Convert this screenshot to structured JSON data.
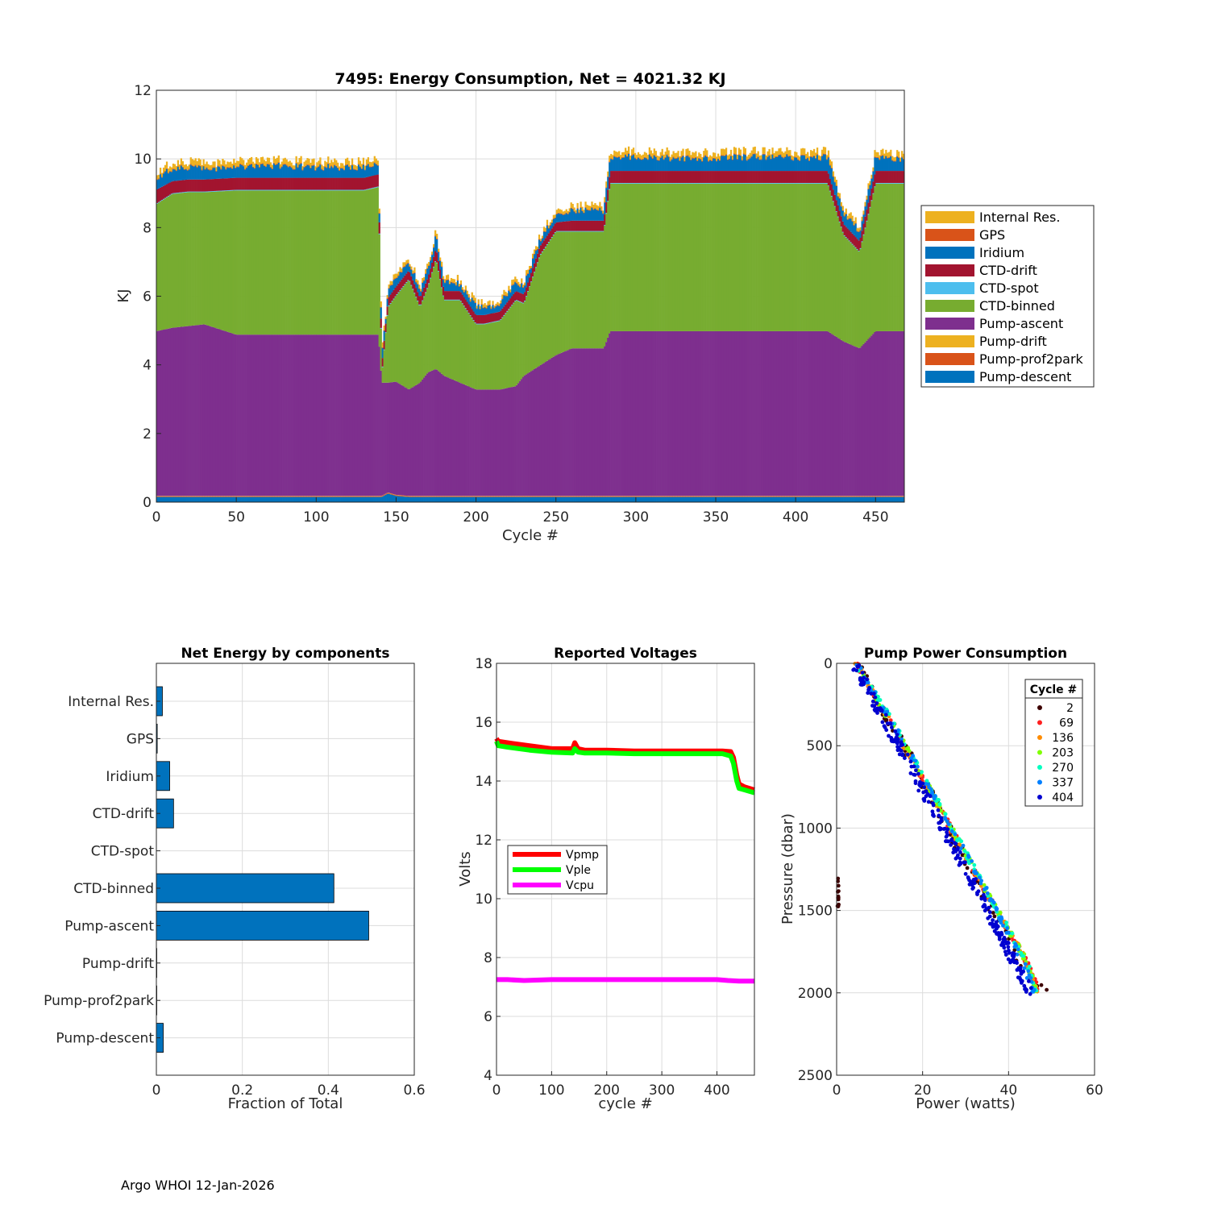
{
  "footer": "Argo WHOI 12-Jan-2026",
  "colors": {
    "internal_res": "#EDB120",
    "gps": "#D95319",
    "iridium": "#0072BD",
    "ctd_drift": "#A2142F",
    "ctd_spot": "#4DBEEE",
    "ctd_binned": "#77AC30",
    "pump_ascent": "#7E2F8E",
    "pump_drift": "#EDB120",
    "pump_prof2park": "#D95319",
    "pump_descent": "#0072BD",
    "grid": "#dcdcdc",
    "bar_blue": "#0072BD",
    "vpmp": "#FF0000",
    "vple": "#00FF00",
    "vcpu": "#FF00FF"
  },
  "chart_data": [
    {
      "type": "bar",
      "stacked": true,
      "title": "7495: Energy Consumption,  Net = 4021.32 KJ",
      "xlabel": "Cycle #",
      "ylabel": "KJ",
      "xlim": [
        0,
        468
      ],
      "ylim": [
        0,
        12
      ],
      "xticks": [
        "0",
        "50",
        "100",
        "150",
        "200",
        "250",
        "300",
        "350",
        "400",
        "450"
      ],
      "yticks": [
        "0",
        "2",
        "4",
        "6",
        "8",
        "10",
        "12"
      ],
      "legend": [
        "Internal Res.",
        "GPS",
        "Iridium",
        "CTD-drift",
        "CTD-spot",
        "CTD-binned",
        "Pump-ascent",
        "Pump-drift",
        "Pump-prof2park",
        "Pump-descent"
      ],
      "legend_location": "outside-right",
      "profile_cycles": [
        0,
        10,
        20,
        30,
        50,
        80,
        97,
        110,
        130,
        139,
        141,
        145,
        150,
        158,
        165,
        170,
        175,
        180,
        190,
        200,
        205,
        215,
        225,
        230,
        240,
        250,
        260,
        280,
        284,
        300,
        330,
        350,
        360,
        400,
        410,
        420,
        430,
        440,
        450,
        468
      ],
      "series": [
        {
          "name": "Pump-descent",
          "values": [
            0.15,
            0.15,
            0.15,
            0.15,
            0.15,
            0.15,
            0.15,
            0.15,
            0.15,
            0.15,
            0.15,
            0.25,
            0.18,
            0.15,
            0.15,
            0.15,
            0.15,
            0.15,
            0.15,
            0.15,
            0.15,
            0.15,
            0.15,
            0.15,
            0.15,
            0.15,
            0.15,
            0.15,
            0.15,
            0.15,
            0.15,
            0.15,
            0.15,
            0.15,
            0.15,
            0.15,
            0.15,
            0.15,
            0.15,
            0.15
          ]
        },
        {
          "name": "Pump-prof2park",
          "values": [
            0.02,
            0.02,
            0.02,
            0.02,
            0.02,
            0.02,
            0.02,
            0.02,
            0.02,
            0.02,
            0.02,
            0.02,
            0.02,
            0.02,
            0.02,
            0.02,
            0.02,
            0.02,
            0.02,
            0.02,
            0.02,
            0.02,
            0.02,
            0.02,
            0.02,
            0.02,
            0.02,
            0.02,
            0.02,
            0.02,
            0.02,
            0.02,
            0.02,
            0.02,
            0.02,
            0.02,
            0.02,
            0.02,
            0.02,
            0.02
          ]
        },
        {
          "name": "Pump-drift",
          "values": [
            0.01,
            0.01,
            0.01,
            0.01,
            0.01,
            0.01,
            0.01,
            0.01,
            0.01,
            0.01,
            0.01,
            0.01,
            0.01,
            0.01,
            0.01,
            0.01,
            0.01,
            0.01,
            0.01,
            0.01,
            0.01,
            0.01,
            0.01,
            0.01,
            0.01,
            0.01,
            0.01,
            0.01,
            0.01,
            0.01,
            0.01,
            0.01,
            0.01,
            0.01,
            0.01,
            0.01,
            0.01,
            0.01,
            0.01,
            0.01
          ]
        },
        {
          "name": "Pump-ascent",
          "values": [
            4.8,
            4.9,
            4.95,
            5.0,
            4.7,
            4.7,
            4.7,
            4.7,
            4.7,
            4.7,
            3.3,
            3.2,
            3.3,
            3.1,
            3.3,
            3.6,
            3.7,
            3.5,
            3.3,
            3.1,
            3.1,
            3.1,
            3.2,
            3.5,
            3.8,
            4.1,
            4.3,
            4.3,
            4.8,
            4.8,
            4.8,
            4.8,
            4.8,
            4.8,
            4.8,
            4.8,
            4.5,
            4.3,
            4.8,
            4.8
          ]
        },
        {
          "name": "CTD-binned",
          "values": [
            3.7,
            3.9,
            3.9,
            3.85,
            4.2,
            4.2,
            4.2,
            4.2,
            4.2,
            4.3,
            0.2,
            2.2,
            2.5,
            3.2,
            2.2,
            2.5,
            3.2,
            2.2,
            2.4,
            1.9,
            1.9,
            2.0,
            2.5,
            2.1,
            3.2,
            3.6,
            3.4,
            3.4,
            4.3,
            4.3,
            4.3,
            4.3,
            4.3,
            4.3,
            4.3,
            4.3,
            3.1,
            2.8,
            4.3,
            4.3
          ]
        },
        {
          "name": "CTD-spot",
          "values": [
            0.02,
            0.02,
            0.02,
            0.02,
            0.02,
            0.02,
            0.02,
            0.02,
            0.02,
            0.02,
            0.02,
            0.02,
            0.02,
            0.02,
            0.02,
            0.02,
            0.02,
            0.02,
            0.02,
            0.02,
            0.02,
            0.02,
            0.02,
            0.02,
            0.02,
            0.02,
            0.02,
            0.02,
            0.02,
            0.02,
            0.02,
            0.02,
            0.02,
            0.02,
            0.02,
            0.02,
            0.02,
            0.02,
            0.02,
            0.02
          ]
        },
        {
          "name": "CTD-drift",
          "values": [
            0.4,
            0.35,
            0.35,
            0.35,
            0.35,
            0.35,
            0.35,
            0.35,
            0.35,
            0.35,
            0.25,
            0.25,
            0.25,
            0.25,
            0.25,
            0.25,
            0.3,
            0.25,
            0.25,
            0.25,
            0.25,
            0.25,
            0.25,
            0.25,
            0.25,
            0.25,
            0.3,
            0.3,
            0.35,
            0.35,
            0.35,
            0.35,
            0.35,
            0.35,
            0.35,
            0.35,
            0.3,
            0.3,
            0.35,
            0.35
          ]
        },
        {
          "name": "Iridium",
          "values": [
            0.35,
            0.35,
            0.35,
            0.3,
            0.3,
            0.35,
            0.3,
            0.3,
            0.3,
            0.3,
            0.2,
            0.25,
            0.2,
            0.25,
            0.2,
            0.25,
            0.35,
            0.25,
            0.2,
            0.25,
            0.2,
            0.25,
            0.2,
            0.25,
            0.2,
            0.2,
            0.3,
            0.3,
            0.4,
            0.4,
            0.35,
            0.35,
            0.4,
            0.4,
            0.35,
            0.4,
            0.3,
            0.3,
            0.4,
            0.35
          ]
        },
        {
          "name": "GPS",
          "values": [
            0.02,
            0.02,
            0.02,
            0.02,
            0.02,
            0.02,
            0.02,
            0.02,
            0.02,
            0.02,
            0.02,
            0.02,
            0.02,
            0.02,
            0.02,
            0.02,
            0.02,
            0.02,
            0.02,
            0.02,
            0.02,
            0.02,
            0.02,
            0.02,
            0.02,
            0.02,
            0.02,
            0.02,
            0.02,
            0.02,
            0.02,
            0.02,
            0.02,
            0.02,
            0.02,
            0.02,
            0.02,
            0.02,
            0.02,
            0.02
          ]
        },
        {
          "name": "Internal Res.",
          "values": [
            0.15,
            0.15,
            0.15,
            0.15,
            0.15,
            0.15,
            0.15,
            0.15,
            0.15,
            0.15,
            0.1,
            0.1,
            0.1,
            0.1,
            0.1,
            0.1,
            0.12,
            0.1,
            0.1,
            0.1,
            0.1,
            0.1,
            0.1,
            0.1,
            0.1,
            0.1,
            0.12,
            0.12,
            0.15,
            0.15,
            0.15,
            0.15,
            0.15,
            0.15,
            0.15,
            0.15,
            0.12,
            0.12,
            0.15,
            0.15
          ]
        }
      ]
    },
    {
      "type": "bar",
      "orientation": "horizontal",
      "title": "Net Energy by components",
      "xlabel": "Fraction of Total",
      "xlim": [
        0,
        0.6
      ],
      "xticks": [
        "0",
        "0.2",
        "0.4",
        "0.6"
      ],
      "categories": [
        "Internal Res.",
        "GPS",
        "Iridium",
        "CTD-drift",
        "CTD-spot",
        "CTD-binned",
        "Pump-ascent",
        "Pump-drift",
        "Pump-prof2park",
        "Pump-descent"
      ],
      "values": [
        0.014,
        0.002,
        0.031,
        0.04,
        0.0005,
        0.413,
        0.494,
        0.001,
        0.001,
        0.016
      ]
    },
    {
      "type": "line",
      "title": "Reported Voltages",
      "xlabel": "cycle #",
      "ylabel": "Volts",
      "xlim": [
        0,
        468
      ],
      "ylim": [
        4,
        18
      ],
      "xticks": [
        "0",
        "100",
        "200",
        "300",
        "400"
      ],
      "yticks": [
        "4",
        "6",
        "8",
        "10",
        "12",
        "14",
        "16",
        "18"
      ],
      "legend_location": "middle-left",
      "series": [
        {
          "name": "Vpmp",
          "x": [
            0,
            3,
            20,
            60,
            100,
            138,
            142,
            148,
            160,
            200,
            250,
            300,
            350,
            410,
            425,
            430,
            436,
            440,
            450,
            468
          ],
          "y": [
            15.45,
            15.35,
            15.3,
            15.2,
            15.1,
            15.1,
            15.3,
            15.1,
            15.05,
            15.05,
            15.02,
            15.02,
            15.02,
            15.02,
            15.0,
            14.8,
            14.2,
            13.9,
            13.8,
            13.7
          ]
        },
        {
          "name": "Vple",
          "x": [
            0,
            3,
            20,
            60,
            100,
            138,
            142,
            148,
            160,
            200,
            250,
            300,
            350,
            410,
            425,
            430,
            436,
            440,
            450,
            468
          ],
          "y": [
            15.35,
            15.2,
            15.15,
            15.05,
            14.98,
            14.95,
            15.1,
            14.98,
            14.95,
            14.95,
            14.93,
            14.93,
            14.93,
            14.93,
            14.85,
            14.6,
            14.0,
            13.75,
            13.7,
            13.6
          ]
        },
        {
          "name": "Vcpu",
          "x": [
            0,
            20,
            50,
            100,
            200,
            300,
            400,
            420,
            440,
            468
          ],
          "y": [
            7.25,
            7.25,
            7.22,
            7.25,
            7.25,
            7.25,
            7.25,
            7.22,
            7.2,
            7.2
          ]
        }
      ]
    },
    {
      "type": "scatter",
      "title": "Pump Power Consumption",
      "xlabel": "Power (watts)",
      "ylabel": "Pressure (dbar)",
      "xlim": [
        0,
        60
      ],
      "ylim": [
        0,
        2500
      ],
      "y_reversed": true,
      "xticks": [
        "0",
        "20",
        "40",
        "60"
      ],
      "yticks": [
        "0",
        "500",
        "1000",
        "1500",
        "2000",
        "2500"
      ],
      "legend_title": "Cycle #",
      "legend_location": "top-right",
      "series": [
        {
          "name": "2",
          "color": "#3d0000",
          "x": [
            4.5,
            15,
            25,
            35,
            45,
            48.5,
            0.2,
            0.4
          ],
          "y": [
            0,
            480,
            950,
            1440,
            1900,
            2000,
            1300,
            1450
          ]
        },
        {
          "name": "69",
          "color": "#ff2020",
          "x": [
            4.5,
            15,
            25,
            35,
            44,
            47
          ],
          "y": [
            0,
            470,
            930,
            1400,
            1800,
            2000
          ]
        },
        {
          "name": "136",
          "color": "#ff8c00",
          "x": [
            4.5,
            15,
            25,
            35,
            44,
            46.5
          ],
          "y": [
            0,
            470,
            930,
            1400,
            1800,
            2000
          ]
        },
        {
          "name": "203",
          "color": "#80ff00",
          "x": [
            4.5,
            15,
            25,
            35,
            44,
            46.5
          ],
          "y": [
            0,
            460,
            920,
            1390,
            1800,
            2000
          ]
        },
        {
          "name": "270",
          "color": "#00ffc0",
          "x": [
            4.5,
            15,
            25,
            35,
            44,
            46.5
          ],
          "y": [
            0,
            440,
            910,
            1390,
            1800,
            2000
          ]
        },
        {
          "name": "337",
          "color": "#0080ff",
          "x": [
            4.5,
            15,
            25,
            35,
            43.5,
            46
          ],
          "y": [
            0,
            450,
            920,
            1390,
            1820,
            2000
          ]
        },
        {
          "name": "404",
          "color": "#0000d0",
          "x": [
            4,
            14,
            24,
            34,
            42,
            45.5
          ],
          "y": [
            0,
            480,
            960,
            1440,
            1850,
            2010
          ]
        }
      ]
    }
  ]
}
